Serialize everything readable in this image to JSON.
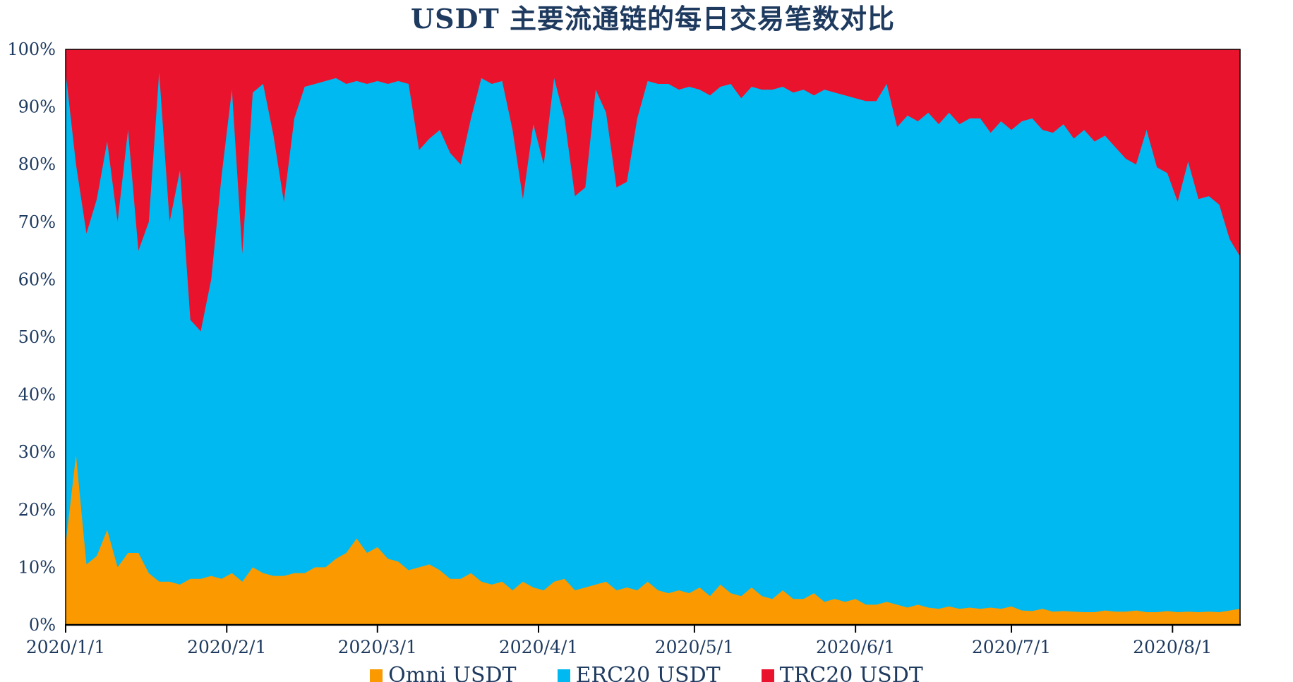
{
  "title": "USDT 主要流通链的每日交易笔数对比",
  "colors": {
    "omni": "#FA9A00",
    "erc20": "#00B9F0",
    "trc20": "#EA132D",
    "text": "#1E3A5F",
    "axis": "#000000",
    "background": "#FFFFFF"
  },
  "legend": [
    {
      "label": "Omni USDT",
      "color": "#FA9A00"
    },
    {
      "label": "ERC20 USDT",
      "color": "#00B9F0"
    },
    {
      "label": "TRC20 USDT",
      "color": "#EA132D"
    }
  ],
  "chart_data": {
    "type": "area",
    "stacked": true,
    "percent_stack_total": 100,
    "title": "USDT 主要流通链的每日交易笔数对比",
    "xlabel": "",
    "ylabel": "",
    "ylim": [
      0,
      100
    ],
    "grid": false,
    "legend_position": "bottom",
    "x_tick_labels": [
      "2020/1/1",
      "2020/2/1",
      "2020/3/1",
      "2020/4/1",
      "2020/5/1",
      "2020/6/1",
      "2020/7/1",
      "2020/8/1"
    ],
    "x_tick_days": [
      0,
      31,
      60,
      91,
      121,
      152,
      182,
      213
    ],
    "x_start_label": "2020/1/1",
    "x_total_days": 226,
    "y_ticks": {
      "labels": [
        "0%",
        "10%",
        "20%",
        "30%",
        "40%",
        "50%",
        "60%",
        "70%",
        "80%",
        "90%",
        "100%"
      ],
      "values": [
        0,
        10,
        20,
        30,
        40,
        50,
        60,
        70,
        80,
        90,
        100
      ]
    },
    "days": [
      0,
      2,
      4,
      6,
      8,
      10,
      12,
      14,
      16,
      18,
      20,
      22,
      24,
      26,
      28,
      30,
      32,
      34,
      36,
      38,
      40,
      42,
      44,
      46,
      48,
      50,
      52,
      54,
      56,
      58,
      60,
      62,
      64,
      66,
      68,
      70,
      72,
      74,
      76,
      78,
      80,
      82,
      84,
      86,
      88,
      90,
      92,
      94,
      96,
      98,
      100,
      102,
      104,
      106,
      108,
      110,
      112,
      114,
      116,
      118,
      120,
      122,
      124,
      126,
      128,
      130,
      132,
      134,
      136,
      138,
      140,
      142,
      144,
      146,
      148,
      150,
      152,
      154,
      156,
      158,
      160,
      162,
      164,
      166,
      168,
      170,
      172,
      174,
      176,
      178,
      180,
      182,
      184,
      186,
      188,
      190,
      192,
      194,
      196,
      198,
      200,
      202,
      204,
      206,
      208,
      210,
      212,
      214,
      216,
      218,
      220,
      222,
      224,
      226
    ],
    "series": [
      {
        "name": "Omni USDT",
        "color": "#FA9A00",
        "values": [
          14,
          29.5,
          10.5,
          12,
          16.5,
          10,
          12.5,
          12.5,
          9,
          7.5,
          7.5,
          7,
          8,
          8,
          8.5,
          8,
          9,
          7.5,
          10,
          9,
          8.5,
          8.5,
          9,
          9,
          10,
          10,
          11.5,
          12.5,
          15,
          12.5,
          13.5,
          11.5,
          11,
          9.5,
          10,
          10.5,
          9.5,
          8,
          8,
          9,
          7.5,
          7,
          7.5,
          6,
          7.5,
          6.5,
          6,
          7.5,
          8,
          6,
          6.5,
          7,
          7.5,
          6,
          6.5,
          6,
          7.5,
          6,
          5.5,
          6,
          5.5,
          6.5,
          5,
          7,
          5.5,
          5,
          6.5,
          5,
          4.5,
          6,
          4.5,
          4.5,
          5.5,
          4,
          4.5,
          4,
          4.5,
          3.5,
          3.5,
          4,
          3.5,
          3,
          3.5,
          3,
          2.8,
          3.2,
          2.8,
          3,
          2.8,
          3,
          2.8,
          3.2,
          2.5,
          2.4,
          2.8,
          2.3,
          2.4,
          2.3,
          2.2,
          2.2,
          2.5,
          2.3,
          2.3,
          2.5,
          2.2,
          2.2,
          2.4,
          2.2,
          2.3,
          2.2,
          2.3,
          2.2,
          2.5,
          2.8
        ]
      },
      {
        "name": "ERC20 USDT",
        "color": "#00B9F0",
        "values": [
          82,
          50.5,
          57.5,
          62,
          67.5,
          60,
          73.5,
          52.5,
          61,
          88.5,
          62.5,
          72,
          45,
          43,
          51.5,
          70,
          84,
          57,
          82.5,
          85,
          76.5,
          65,
          79,
          84.5,
          84,
          84.5,
          83.5,
          81.5,
          79.5,
          81.5,
          81,
          82.5,
          83.5,
          84.5,
          72.5,
          74,
          76.5,
          74,
          72,
          79,
          87.5,
          87,
          87,
          80,
          66.5,
          80.5,
          74,
          87.5,
          80,
          68.5,
          69.5,
          86,
          81.5,
          70,
          70.5,
          82,
          87,
          88,
          88.5,
          87,
          88,
          86.5,
          87,
          86.5,
          88.5,
          86.5,
          87,
          88,
          88.5,
          87.5,
          88,
          88.5,
          86.5,
          89,
          88,
          88,
          87,
          87.5,
          87.5,
          90,
          83,
          85.5,
          84,
          86,
          84.2,
          85.8,
          84.2,
          85,
          85.2,
          82.5,
          84.7,
          82.8,
          85,
          85.6,
          83.2,
          83.2,
          84.6,
          82.2,
          83.8,
          81.8,
          82.5,
          80.7,
          78.7,
          77.5,
          83.8,
          77.3,
          76.1,
          71.3,
          78.2,
          71.8,
          72.2,
          70.8,
          64.5,
          61.2
        ]
      },
      {
        "name": "TRC20 USDT",
        "color": "#EA132D",
        "values": [
          4,
          20,
          32,
          26,
          16,
          30,
          14,
          35,
          30,
          4,
          30,
          21,
          47,
          49,
          40,
          22,
          7,
          35.5,
          7.5,
          6,
          15,
          26.5,
          12,
          6.5,
          6,
          5.5,
          5,
          6,
          5.5,
          6,
          5.5,
          6,
          5.5,
          6,
          17.5,
          15.5,
          14,
          18,
          20,
          12,
          5,
          6,
          5.5,
          14,
          26,
          13,
          20,
          5,
          12,
          25.5,
          24,
          7,
          11,
          24,
          23,
          12,
          5.5,
          6,
          6,
          7,
          6.5,
          7,
          8,
          6.5,
          6,
          8.5,
          6.5,
          7,
          7,
          6.5,
          7.5,
          7,
          8,
          7,
          7.5,
          8,
          8.5,
          9,
          9,
          6,
          13.5,
          11.5,
          12.5,
          11,
          13,
          11,
          13,
          12,
          12,
          14.5,
          12.5,
          14,
          12.5,
          12,
          14,
          14.5,
          13,
          15.5,
          14,
          16,
          15,
          17,
          19,
          20,
          14,
          20.5,
          21.5,
          26.5,
          19.5,
          26,
          25.5,
          27,
          33,
          36
        ]
      }
    ]
  }
}
